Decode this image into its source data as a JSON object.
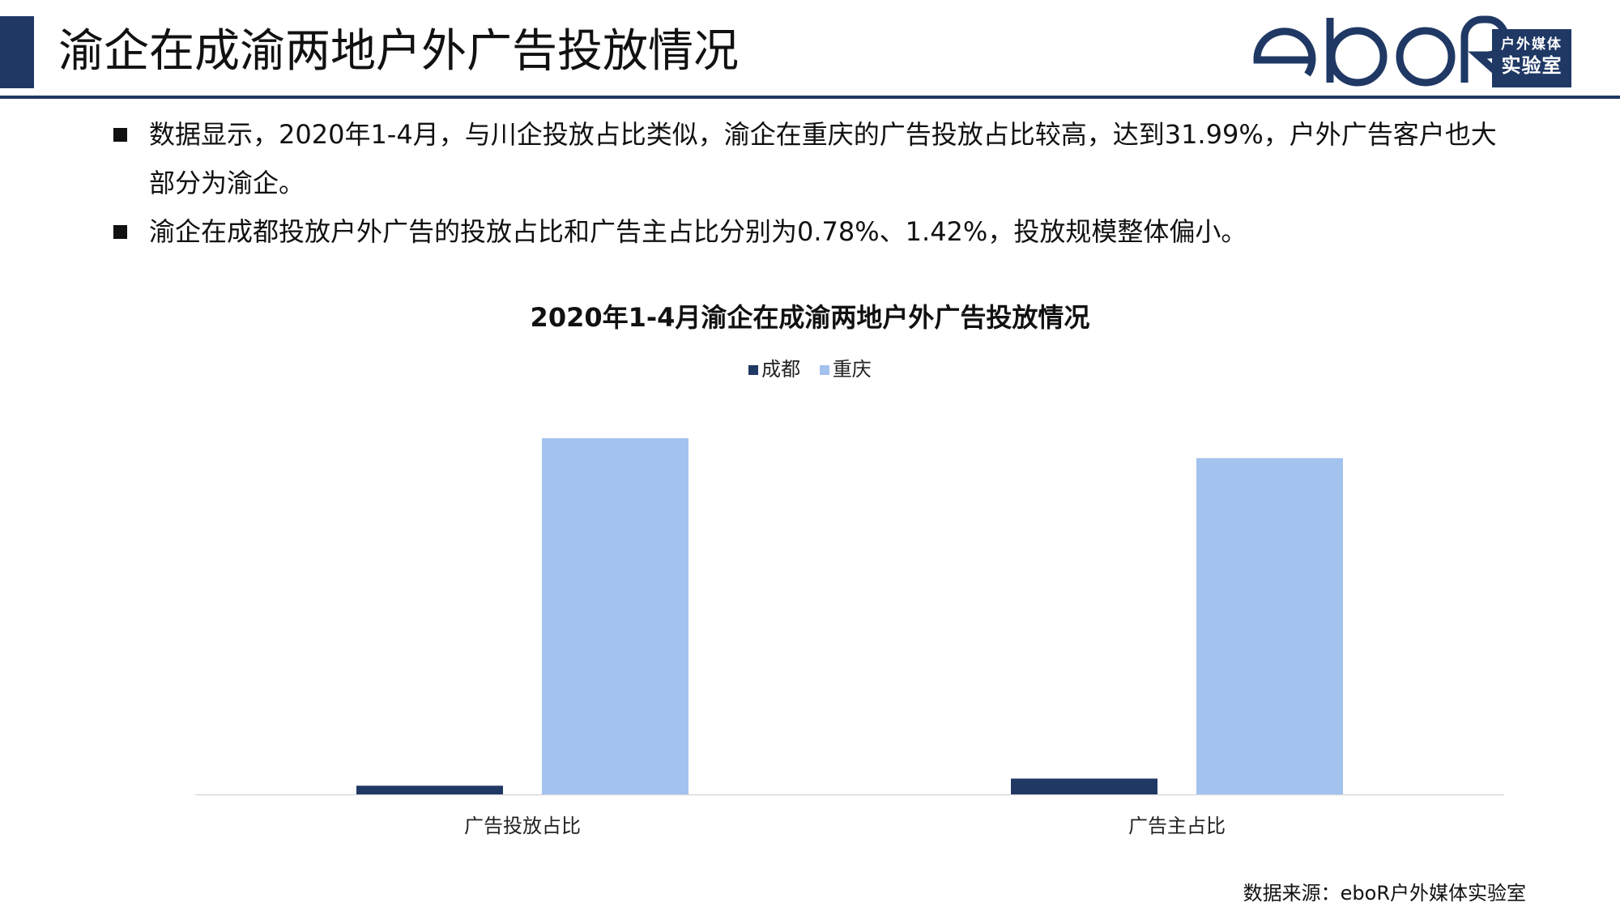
{
  "header": {
    "title": "渝企在成渝两地户外广告投放情况",
    "logo": {
      "wordmark": "eboR",
      "line1": "户外媒体",
      "line2": "实验室"
    }
  },
  "bullets": [
    "数据显示，2020年1-4月，与川企投放占比类似，渝企在重庆的广告投放占比较高，达到31.99%，户外广告客户也大部分为渝企。",
    "渝企在成都投放户外广告的投放占比和广告主占比分别为0.78%、1.42%，投放规模整体偏小。"
  ],
  "chart_data": {
    "type": "bar",
    "title": "2020年1-4月渝企在成渝两地户外广告投放情况",
    "categories": [
      "广告投放占比",
      "广告主占比"
    ],
    "series": [
      {
        "name": "成都",
        "values": [
          0.78,
          1.42
        ],
        "color": "#203864"
      },
      {
        "name": "重庆",
        "values": [
          31.99,
          30.2
        ],
        "color": "#a3c2ee"
      }
    ],
    "xlabel": "",
    "ylabel": "",
    "ylim": [
      0,
      32
    ],
    "unit": "%",
    "grid": false,
    "legend_position": "top-center"
  },
  "footer": {
    "source": "数据来源：eboR户外媒体实验室"
  },
  "colors": {
    "brand": "#1f3864",
    "chengdu": "#203864",
    "chongqing": "#a3c2ee"
  }
}
